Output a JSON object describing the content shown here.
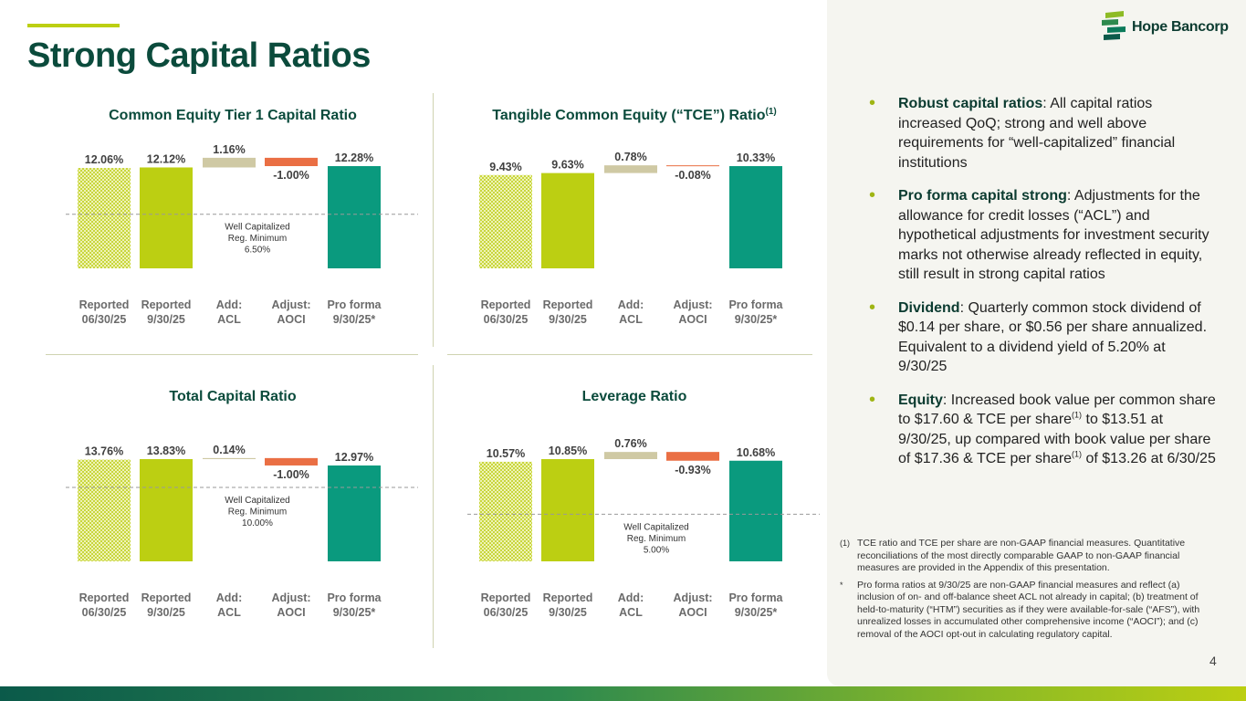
{
  "title": "Strong Capital Ratios",
  "logo": {
    "text": "Hope Bancorp",
    "mark_icon": "hope-bancorp-logo-mark"
  },
  "colors": {
    "reported_prior": "#c9d63c",
    "reported_current": "#bccf12",
    "add": "#cfc9a4",
    "adjust": "#ea6f44",
    "pro_forma": "#0a9a7e",
    "threshold": "#999999",
    "title_green": "#0b4b3c"
  },
  "categories": [
    "Reported\n06/30/25",
    "Reported\n9/30/25",
    "Add:\nACL",
    "Adjust:\nAOCI",
    "Pro forma\n9/30/25*"
  ],
  "chart_data": [
    {
      "type": "bar",
      "title": "Common Equity Tier 1 Capital Ratio",
      "title_sup": "",
      "values": [
        12.06,
        12.12,
        1.16,
        -1.0,
        12.28
      ],
      "labels": [
        "12.06%",
        "12.12%",
        "1.16%",
        "-1.00%",
        "12.28%"
      ],
      "threshold": {
        "value": 6.5,
        "text": [
          "Well Capitalized",
          "Reg. Minimum",
          "6.50%"
        ]
      }
    },
    {
      "type": "bar",
      "title": "Tangible Common Equity (“TCE”) Ratio",
      "title_sup": "(1)",
      "values": [
        9.43,
        9.63,
        0.78,
        -0.08,
        10.33
      ],
      "labels": [
        "9.43%",
        "9.63%",
        "0.78%",
        "-0.08%",
        "10.33%"
      ],
      "threshold": null
    },
    {
      "type": "bar",
      "title": "Total Capital Ratio",
      "title_sup": "",
      "values": [
        13.76,
        13.83,
        0.14,
        -1.0,
        12.97
      ],
      "labels": [
        "13.76%",
        "13.83%",
        "0.14%",
        "-1.00%",
        "12.97%"
      ],
      "threshold": {
        "value": 10.0,
        "text": [
          "Well Capitalized",
          "Reg. Minimum",
          "10.00%"
        ]
      }
    },
    {
      "type": "bar",
      "title": "Leverage Ratio",
      "title_sup": "",
      "values": [
        10.57,
        10.85,
        0.76,
        -0.93,
        10.68
      ],
      "labels": [
        "10.57%",
        "10.85%",
        "0.76%",
        "-0.93%",
        "10.68%"
      ],
      "threshold": {
        "value": 5.0,
        "text": [
          "Well Capitalized",
          "Reg. Minimum",
          "5.00%"
        ]
      }
    }
  ],
  "bullets": [
    {
      "head": "Robust capital ratios",
      "text": ": All capital ratios increased QoQ; strong and well above requirements for “well-capitalized” financial institutions"
    },
    {
      "head": "Pro forma capital strong",
      "text": ": Adjustments for the allowance for credit losses (“ACL”) and hypothetical adjustments for investment security marks not otherwise already reflected in equity, still result in strong capital ratios"
    },
    {
      "head": "Dividend",
      "text": ": Quarterly common stock dividend of $0.14 per share, or $0.56 per share annualized. Equivalent to a dividend yield of 5.20% at 9/30/25"
    },
    {
      "head": "Equity",
      "t1": ": Increased book value per common share to $17.60 & TCE per share",
      "sup1": "(1)",
      "t2": " to $13.51 at 9/30/25, up compared with book value per share of $17.36 & TCE per share",
      "sup2": "(1)",
      "t3": " of $13.26 at 6/30/25"
    }
  ],
  "footnotes": [
    {
      "mark": "(1)",
      "text": "TCE ratio and TCE per share are non-GAAP financial measures. Quantitative reconciliations of the most directly comparable GAAP to non-GAAP financial measures are provided in the Appendix of this presentation."
    },
    {
      "mark": "*",
      "text": "Pro forma ratios at 9/30/25 are non-GAAP financial measures and reflect (a) inclusion of on- and off-balance sheet ACL not already in capital; (b) treatment of held-to-maturity (“HTM”) securities as if they were available-for-sale (“AFS”), with unrealized losses in accumulated other comprehensive income (“AOCI”); and (c) removal of the AOCI opt-out in calculating regulatory capital."
    }
  ],
  "page_number": "4"
}
